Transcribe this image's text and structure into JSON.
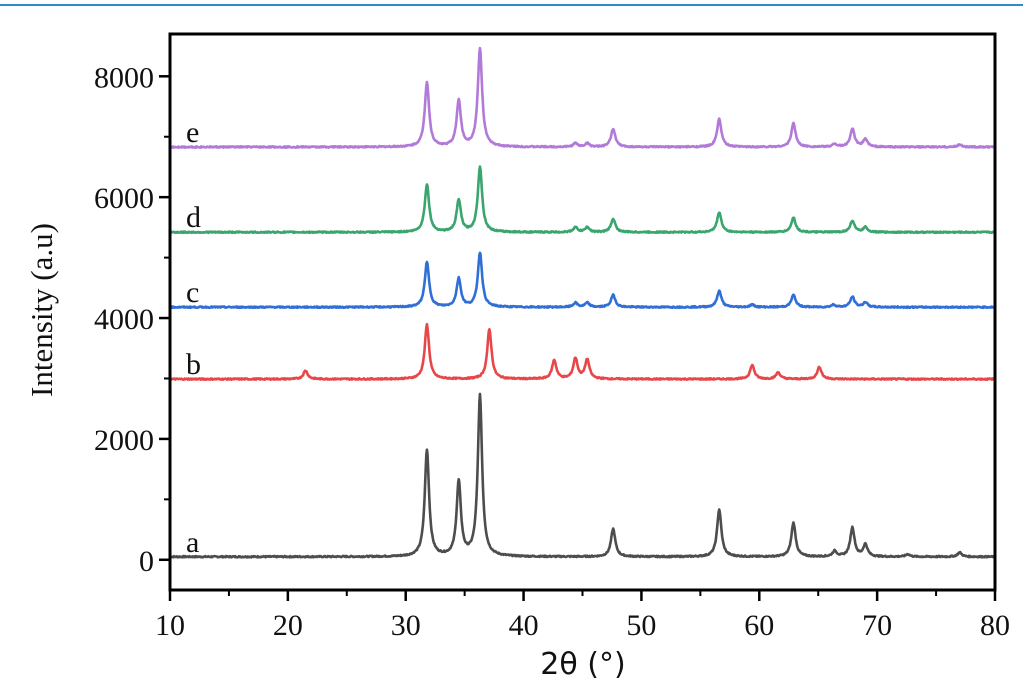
{
  "chart_data": {
    "type": "line",
    "title": "",
    "xlabel": "2θ (°)",
    "ylabel": "Intensity (a.u)",
    "xlim": [
      10,
      80
    ],
    "ylim": [
      -500,
      8700
    ],
    "x_ticks": [
      10,
      20,
      30,
      40,
      50,
      60,
      70,
      80
    ],
    "y_ticks": [
      0,
      2000,
      4000,
      6000,
      8000
    ],
    "grid": false,
    "legend": "none (series labeled inline at left)",
    "series": [
      {
        "name": "a",
        "color": "#4d4d4d",
        "baseline": 50,
        "peaks": [
          [
            31.8,
            1760
          ],
          [
            34.5,
            1230
          ],
          [
            36.3,
            2660
          ],
          [
            47.6,
            460
          ],
          [
            56.6,
            780
          ],
          [
            62.9,
            560
          ],
          [
            66.4,
            90
          ],
          [
            67.9,
            480
          ],
          [
            69.0,
            200
          ],
          [
            72.6,
            40
          ],
          [
            77.0,
            70
          ]
        ]
      },
      {
        "name": "b",
        "color": "#e8474a",
        "baseline": 2990,
        "peaks": [
          [
            21.5,
            140
          ],
          [
            31.8,
            900
          ],
          [
            37.1,
            820
          ],
          [
            42.6,
            310
          ],
          [
            44.4,
            340
          ],
          [
            45.4,
            320
          ],
          [
            59.4,
            230
          ],
          [
            61.6,
            110
          ],
          [
            65.1,
            200
          ]
        ]
      },
      {
        "name": "c",
        "color": "#2f6fd6",
        "baseline": 4180,
        "peaks": [
          [
            31.8,
            740
          ],
          [
            34.5,
            470
          ],
          [
            36.3,
            900
          ],
          [
            44.4,
            70
          ],
          [
            45.4,
            70
          ],
          [
            47.6,
            200
          ],
          [
            56.6,
            270
          ],
          [
            59.4,
            40
          ],
          [
            62.9,
            200
          ],
          [
            66.3,
            40
          ],
          [
            67.9,
            170
          ],
          [
            69.0,
            80
          ]
        ]
      },
      {
        "name": "d",
        "color": "#3aa56e",
        "baseline": 5420,
        "peaks": [
          [
            31.8,
            790
          ],
          [
            34.5,
            530
          ],
          [
            36.3,
            1080
          ],
          [
            44.4,
            80
          ],
          [
            45.4,
            80
          ],
          [
            47.6,
            220
          ],
          [
            56.6,
            330
          ],
          [
            62.9,
            240
          ],
          [
            67.9,
            190
          ],
          [
            69.0,
            80
          ]
        ]
      },
      {
        "name": "e",
        "color": "#b27ad8",
        "baseline": 6830,
        "peaks": [
          [
            31.8,
            1070
          ],
          [
            34.5,
            760
          ],
          [
            36.3,
            1620
          ],
          [
            44.4,
            60
          ],
          [
            45.4,
            60
          ],
          [
            47.6,
            300
          ],
          [
            56.6,
            460
          ],
          [
            62.9,
            390
          ],
          [
            66.4,
            50
          ],
          [
            67.9,
            300
          ],
          [
            69.0,
            130
          ],
          [
            77.0,
            40
          ]
        ]
      }
    ]
  }
}
